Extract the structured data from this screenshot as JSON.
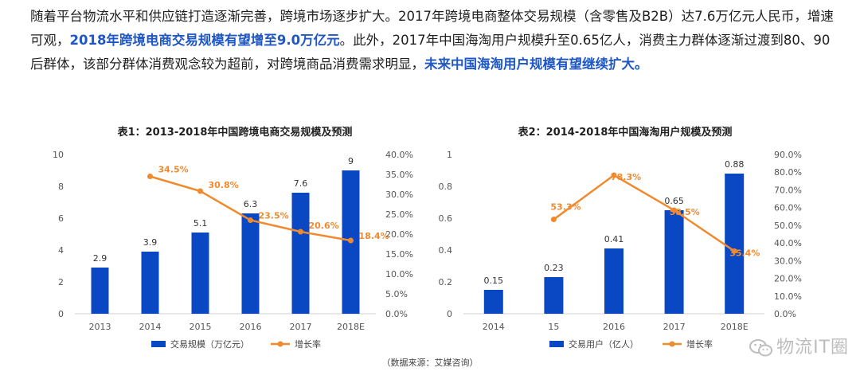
{
  "intro": {
    "part1": "随着平台物流水平和供应链打造逐渐完善，跨境市场逐步扩大。2017年跨境电商整体交易规模（含零售及B2B）达7.6万亿元人民币，增速可观，",
    "highlight1": "2018年跨境电商交易规模有望增至9.0万亿元",
    "part2": "。此外，2017年中国海淘用户规模升至0.65亿人，消费主力群体逐渐过渡到80、90后群体，该部分群体消费观念较为超前，对跨境商品消费需求明显，",
    "highlight2": "未来中国海淘用户规模有望继续扩大。",
    "highlight_color": "#1f57c3"
  },
  "chart_data": [
    {
      "type": "bar",
      "title": "表1：2013-2018年中国跨境电商交易规模及预测",
      "categories": [
        "2013",
        "2014",
        "2015",
        "2016",
        "2017",
        "2018E"
      ],
      "series": [
        {
          "name": "交易规模（万亿元）",
          "kind": "bar",
          "axis": "left",
          "color": "#0a47c2",
          "values": [
            2.9,
            3.9,
            5.1,
            6.3,
            7.6,
            9
          ],
          "labels": [
            "2.9",
            "3.9",
            "5.1",
            "6.3",
            "7.6",
            "9"
          ]
        },
        {
          "name": "增长率",
          "kind": "line",
          "axis": "right",
          "color": "#ef8a2f",
          "values": [
            null,
            34.5,
            30.8,
            23.5,
            20.6,
            18.4
          ],
          "labels": [
            "",
            "34.5%",
            "30.8%",
            "23.5%",
            "20.6%",
            "18.4%"
          ]
        }
      ],
      "ylim_left": [
        0,
        10
      ],
      "yticks_left": [
        "0",
        "2",
        "4",
        "6",
        "8",
        "10"
      ],
      "ylim_right": [
        0,
        40
      ],
      "yticks_right": [
        "0.0%",
        "5.0%",
        "10.0%",
        "15.0%",
        "20.0%",
        "25.0%",
        "30.0%",
        "35.0%",
        "40.0%"
      ],
      "xlabel": "",
      "ylabel": "",
      "grid": false,
      "legend": "bottom"
    },
    {
      "type": "bar",
      "title": "表2：2014-2018年中国海淘用户规模及预测",
      "categories": [
        "2014",
        "15",
        "2016",
        "2017",
        "2018E"
      ],
      "series": [
        {
          "name": "交易用户（亿人）",
          "kind": "bar",
          "axis": "left",
          "color": "#0a47c2",
          "values": [
            0.15,
            0.23,
            0.41,
            0.65,
            0.88
          ],
          "labels": [
            "0.15",
            "0.23",
            "0.41",
            "0.65",
            "0.88"
          ]
        },
        {
          "name": "增长率",
          "kind": "line",
          "axis": "right",
          "color": "#ef8a2f",
          "values": [
            null,
            53.3,
            78.3,
            58.5,
            35.4
          ],
          "labels": [
            "",
            "53.3%",
            "78.3%",
            "58.5%",
            "35.4%"
          ]
        }
      ],
      "ylim_left": [
        0,
        1
      ],
      "yticks_left": [
        "0",
        "0.2",
        "0.4",
        "0.6",
        "0.8",
        "1"
      ],
      "ylim_right": [
        0,
        90
      ],
      "yticks_right": [
        "0.0%",
        "10.0%",
        "20.0%",
        "30.0%",
        "40.0%",
        "50.0%",
        "60.0%",
        "70.0%",
        "80.0%",
        "90.0%"
      ],
      "xlabel": "",
      "ylabel": "",
      "grid": false,
      "legend": "bottom"
    }
  ],
  "footer": {
    "source": "（数据来源：艾媒咨询）",
    "watermark": "物流IT圈",
    "watermark_icon": "wechat-icon"
  }
}
